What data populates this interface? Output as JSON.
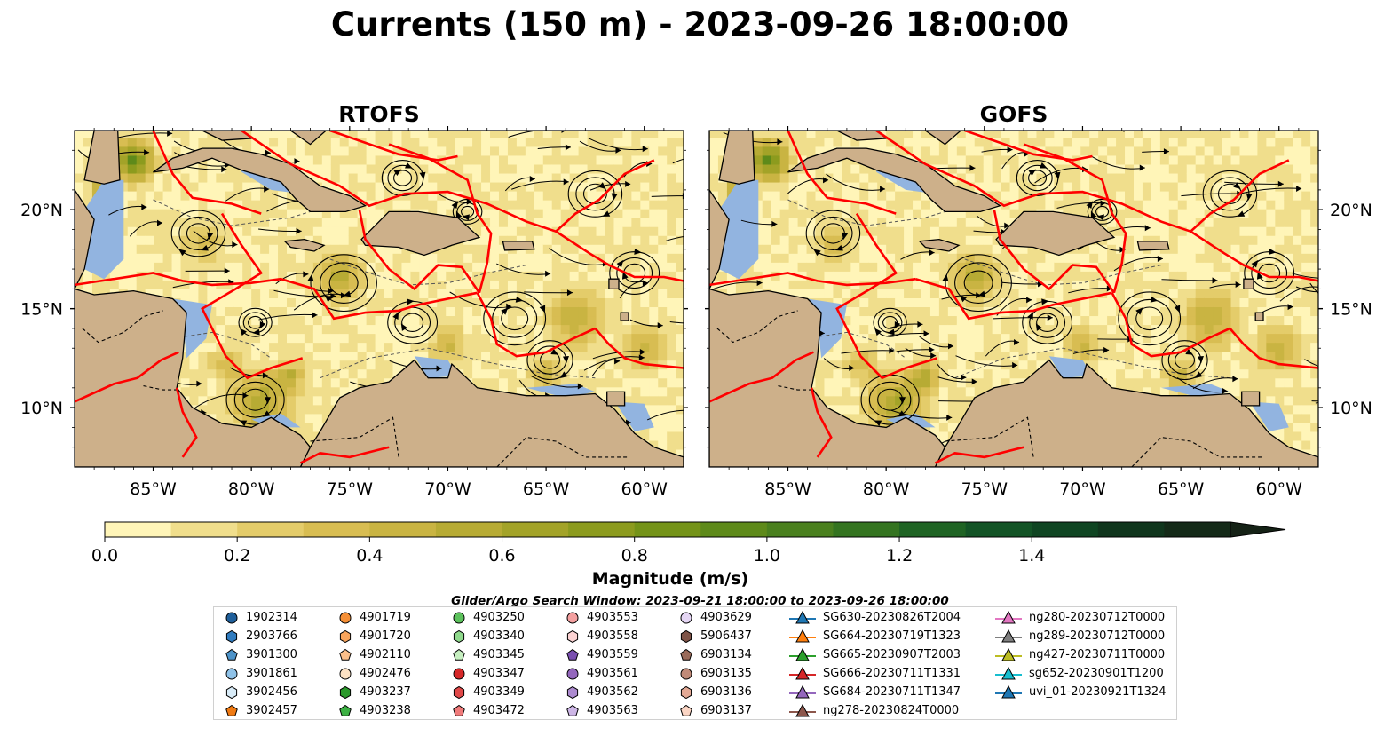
{
  "title": "Currents (150 m) - 2023-09-26 18:00:00",
  "panels": [
    {
      "title": "RTOFS"
    },
    {
      "title": "GOFS"
    }
  ],
  "map": {
    "lon_range": [
      -89,
      -58
    ],
    "lat_range": [
      7,
      24
    ],
    "lon_ticks": [
      {
        "value": -85,
        "label": "85°W"
      },
      {
        "value": -80,
        "label": "80°W"
      },
      {
        "value": -75,
        "label": "75°W"
      },
      {
        "value": -70,
        "label": "70°W"
      },
      {
        "value": -65,
        "label": "65°W"
      },
      {
        "value": -60,
        "label": "60°W"
      }
    ],
    "lat_ticks": [
      {
        "value": 20,
        "label": "20°N"
      },
      {
        "value": 15,
        "label": "15°N"
      },
      {
        "value": 10,
        "label": "10°N"
      }
    ],
    "colors": {
      "ocean_low": "#fff7bc",
      "land": "#cdb08a",
      "shelf": "#92b4e0",
      "eez": "#ff0000",
      "stream": "#000000"
    }
  },
  "colorbar": {
    "label": "Magnitude (m/s)",
    "ticks": [
      "0.0",
      "0.2",
      "0.4",
      "0.6",
      "0.8",
      "1.0",
      "1.2",
      "1.4"
    ],
    "colors": [
      "#fff5b8",
      "#f0de8c",
      "#e4cc6a",
      "#d8bd52",
      "#c9b442",
      "#b7ab34",
      "#a3a328",
      "#8c9b1e",
      "#749318",
      "#5e8a1a",
      "#4a801e",
      "#347420",
      "#1f6424",
      "#135426",
      "#0f4522",
      "#10361d",
      "#142a18",
      "#152216"
    ]
  },
  "search_window": "Glider/Argo Search Window: 2023-09-21 18:00:00 to 2023-09-26 18:00:00",
  "legend": {
    "columns": [
      [
        {
          "label": "1902314",
          "marker": "circle",
          "color": "#1f5f9a"
        },
        {
          "label": "2903766",
          "marker": "hexagon",
          "color": "#2f7bbf"
        },
        {
          "label": "3901300",
          "marker": "pentagon",
          "color": "#4d93c9"
        },
        {
          "label": "3901861",
          "marker": "circle",
          "color": "#8fc2e8"
        },
        {
          "label": "3902456",
          "marker": "hexagon",
          "color": "#d9ecf8"
        },
        {
          "label": "3902457",
          "marker": "pentagon",
          "color": "#f07a12"
        }
      ],
      [
        {
          "label": "4901719",
          "marker": "circle",
          "color": "#f58f36"
        },
        {
          "label": "4901720",
          "marker": "hexagon",
          "color": "#f9a55c"
        },
        {
          "label": "4902110",
          "marker": "pentagon",
          "color": "#fbbf8a"
        },
        {
          "label": "4902476",
          "marker": "circle",
          "color": "#fde2c4"
        },
        {
          "label": "4903237",
          "marker": "hexagon",
          "color": "#2c9a2c"
        },
        {
          "label": "4903238",
          "marker": "pentagon",
          "color": "#3cb043"
        }
      ],
      [
        {
          "label": "4903250",
          "marker": "circle",
          "color": "#5cc25c"
        },
        {
          "label": "4903340",
          "marker": "hexagon",
          "color": "#8fd98c"
        },
        {
          "label": "4903345",
          "marker": "pentagon",
          "color": "#c6efc0"
        },
        {
          "label": "4903347",
          "marker": "circle",
          "color": "#d62728"
        },
        {
          "label": "4903349",
          "marker": "hexagon",
          "color": "#e04848"
        },
        {
          "label": "4903472",
          "marker": "pentagon",
          "color": "#f07a7a"
        }
      ],
      [
        {
          "label": "4903553",
          "marker": "circle",
          "color": "#f4a0a0"
        },
        {
          "label": "4903558",
          "marker": "hexagon",
          "color": "#fbd2d2"
        },
        {
          "label": "4903559",
          "marker": "pentagon",
          "color": "#7a4fb0"
        },
        {
          "label": "4903561",
          "marker": "circle",
          "color": "#9467bd"
        },
        {
          "label": "4903562",
          "marker": "hexagon",
          "color": "#ad8bd0"
        },
        {
          "label": "4903563",
          "marker": "pentagon",
          "color": "#cdb6e6"
        }
      ],
      [
        {
          "label": "4903629",
          "marker": "circle",
          "color": "#e5d6f4"
        },
        {
          "label": "5906437",
          "marker": "hexagon",
          "color": "#7f5448"
        },
        {
          "label": "6903134",
          "marker": "pentagon",
          "color": "#9a6b5a"
        },
        {
          "label": "6903135",
          "marker": "circle",
          "color": "#c08a78"
        },
        {
          "label": "6903136",
          "marker": "hexagon",
          "color": "#e3a995"
        },
        {
          "label": "6903137",
          "marker": "pentagon",
          "color": "#fbd5c4"
        }
      ],
      [
        {
          "label": "SG630-20230826T2004",
          "marker": "triangle",
          "color": "#1f77b4"
        },
        {
          "label": "SG664-20230719T1323",
          "marker": "triangle",
          "color": "#ff7f0e"
        },
        {
          "label": "SG665-20230907T2003",
          "marker": "triangle",
          "color": "#2ca02c"
        },
        {
          "label": "SG666-20230711T1331",
          "marker": "triangle",
          "color": "#d62728"
        },
        {
          "label": "SG684-20230711T1347",
          "marker": "triangle",
          "color": "#9467bd"
        },
        {
          "label": "ng278-20230824T0000",
          "marker": "triangle",
          "color": "#8c564b"
        }
      ],
      [
        {
          "label": "ng280-20230712T0000",
          "marker": "triangle",
          "color": "#e377c2"
        },
        {
          "label": "ng289-20230712T0000",
          "marker": "triangle",
          "color": "#7f7f7f"
        },
        {
          "label": "ng427-20230711T0000",
          "marker": "triangle",
          "color": "#bcbd22"
        },
        {
          "label": "sg652-20230901T1200",
          "marker": "triangle",
          "color": "#17becf"
        },
        {
          "label": "uvi_01-20230921T1324",
          "marker": "triangle",
          "color": "#1f77b4"
        }
      ]
    ]
  }
}
